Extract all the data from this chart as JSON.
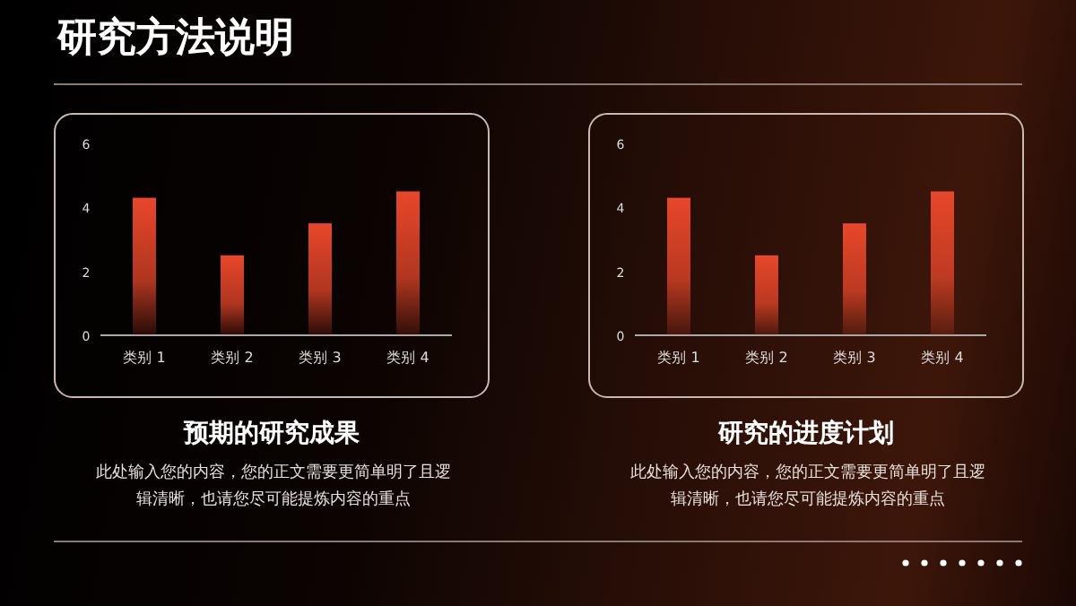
{
  "chart_data": [
    {
      "type": "other",
      "title": "研究方法说明"
    },
    {
      "type": "bar",
      "title": "预期的研究成果",
      "annotations": [
        "此处输入您的内容，您的正文需要更简单明了且逻辑清晰，也请您尽可能提炼内容的重点"
      ],
      "categories": [
        "类别 1",
        "类别 2",
        "类别 3",
        "类别 4"
      ],
      "values": [
        4.3,
        2.5,
        3.5,
        4.5
      ],
      "color": "#e8472a",
      "ylim": [
        0,
        6
      ],
      "yticks": [
        0,
        2,
        4,
        6
      ],
      "grid": false
    },
    {
      "type": "bar",
      "title": "研究的进度计划",
      "annotations": [
        "此处输入您的内容，您的正文需要更简单明了且逻辑清晰，也请您尽可能提炼内容的重点"
      ],
      "categories": [
        "类别 1",
        "类别 2",
        "类别 3",
        "类别 4"
      ],
      "values": [
        4.3,
        2.5,
        3.5,
        4.5
      ],
      "color": "#e8472a",
      "ylim": [
        0,
        6
      ],
      "yticks": [
        0,
        2,
        4,
        6
      ],
      "grid": false
    }
  ]
}
